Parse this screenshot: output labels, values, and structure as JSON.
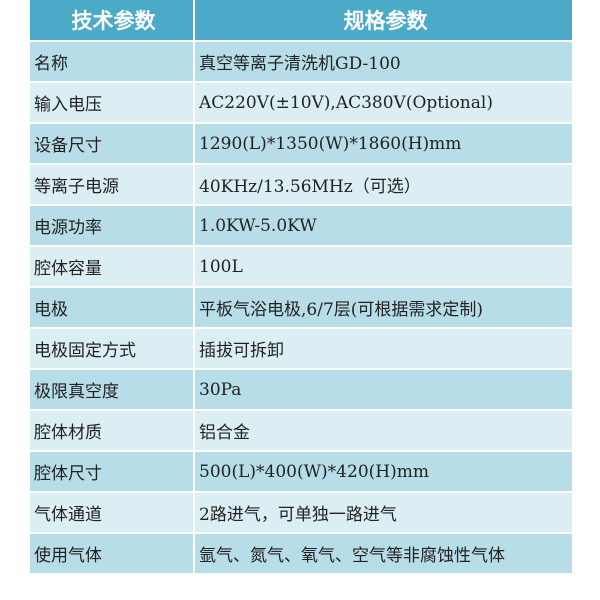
{
  "header": {
    "param": "技术参数",
    "spec": "规格参数"
  },
  "colors": {
    "header": "#4aaac8",
    "row_dark": "#b7dde8",
    "row_light": "#dbeef4"
  },
  "rows": [
    {
      "key": "名称",
      "value": "真空等离子清洗机GD-100"
    },
    {
      "key": "输入电压",
      "value": "AC220V(±10V),AC380V(Optional)"
    },
    {
      "key": "设备尺寸",
      "value": "1290(L)*1350(W)*1860(H)mm"
    },
    {
      "key": "等离子电源",
      "value": "40KHz/13.56MHz（可选）"
    },
    {
      "key": "电源功率",
      "value": "1.0KW-5.0KW"
    },
    {
      "key": "腔体容量",
      "value": "100L"
    },
    {
      "key": "电极",
      "value": "平板气浴电极,6/7层(可根据需求定制)"
    },
    {
      "key": "电极固定方式",
      "value": "插拔可拆卸"
    },
    {
      "key": "极限真空度",
      "value": "30Pa"
    },
    {
      "key": "腔体材质",
      "value": "铝合金"
    },
    {
      "key": "腔体尺寸",
      "value": "500(L)*400(W)*420(H)mm"
    },
    {
      "key": "气体通道",
      "value": "2路进气，可单独一路进气"
    },
    {
      "key": "使用气体",
      "value": "氩气、氮气、氧气、空气等非腐蚀性气体"
    }
  ]
}
